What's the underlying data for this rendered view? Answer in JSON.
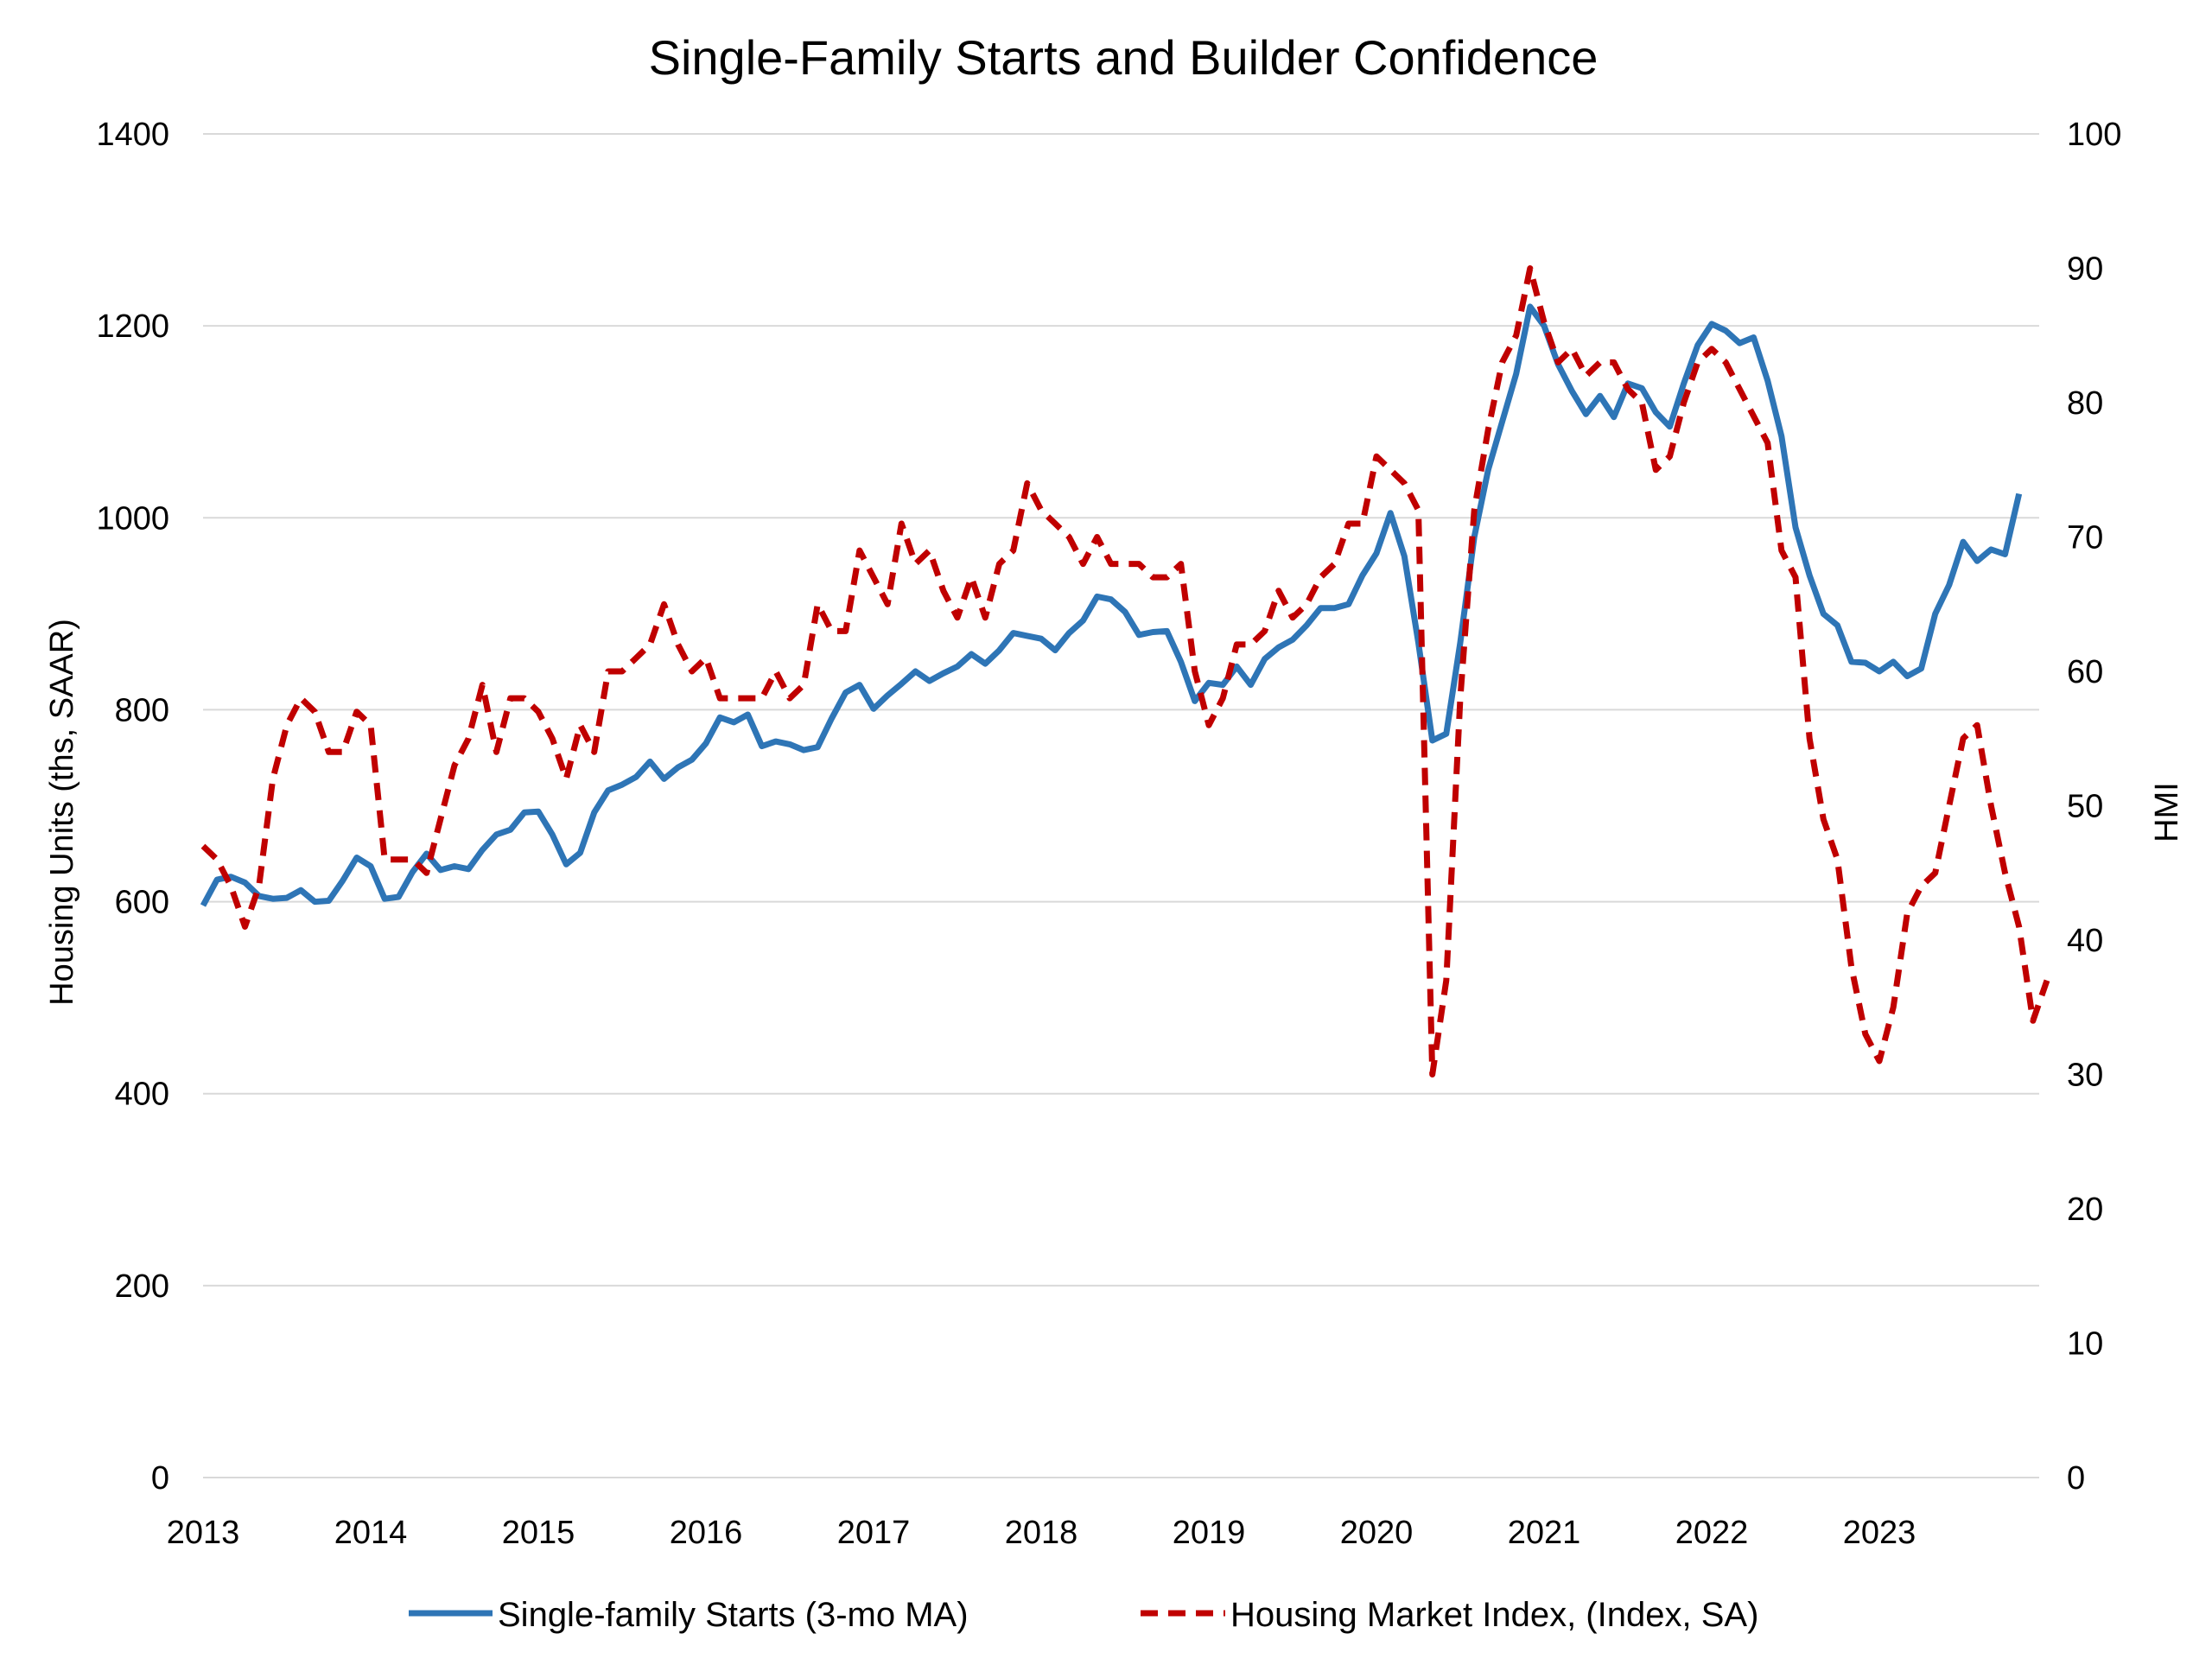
{
  "chart_data": {
    "type": "line",
    "title": "Single-Family Starts and Builder Confidence",
    "ylabel": "Housing Units (ths, SAAR)",
    "y2label": "HMI",
    "ylim": [
      0,
      1400
    ],
    "y2lim": [
      0,
      100
    ],
    "yticks": [
      "0",
      "200",
      "400",
      "600",
      "800",
      "1000",
      "1200",
      "1400"
    ],
    "y2ticks": [
      "0",
      "10",
      "20",
      "30",
      "40",
      "50",
      "60",
      "70",
      "80",
      "90",
      "100"
    ],
    "xticks": [
      "2013",
      "2014",
      "2015",
      "2016",
      "2017",
      "2018",
      "2019",
      "2020",
      "2021",
      "2022",
      "2023"
    ],
    "grid": true,
    "legend_position": "bottom",
    "x_start": "2013-01",
    "series": [
      {
        "name": "Single-family Starts (3-mo MA)",
        "axis": "left",
        "color": "#2e75b6",
        "style": "solid",
        "values": [
          596,
          623,
          626,
          620,
          606,
          603,
          604,
          612,
          600,
          601,
          622,
          646,
          637,
          603,
          605,
          631,
          650,
          633,
          637,
          634,
          654,
          670,
          675,
          693,
          694,
          670,
          639,
          651,
          693,
          716,
          722,
          730,
          746,
          728,
          740,
          748,
          765,
          792,
          787,
          795,
          762,
          767,
          764,
          758,
          761,
          791,
          818,
          826,
          801,
          815,
          827,
          840,
          830,
          838,
          845,
          858,
          848,
          862,
          880,
          877,
          874,
          862,
          880,
          893,
          918,
          915,
          902,
          878,
          881,
          882,
          850,
          809,
          828,
          826,
          845,
          826,
          853,
          865,
          873,
          888,
          906,
          906,
          910,
          940,
          963,
          1005,
          960,
          870,
          768,
          775,
          870,
          980,
          1050,
          1100,
          1150,
          1220,
          1200,
          1160,
          1132,
          1108,
          1127,
          1105,
          1140,
          1135,
          1110,
          1095,
          1140,
          1180,
          1202,
          1195,
          1182,
          1188,
          1143,
          1085,
          990,
          940,
          900,
          888,
          850,
          849,
          840,
          850,
          835,
          843,
          900,
          930,
          975,
          955,
          967,
          962,
          1025
        ]
      },
      {
        "name": "Housing Market Index, (Index, SA)",
        "axis": "right",
        "color": "#c00000",
        "style": "dashed",
        "values": [
          47,
          46,
          44,
          41,
          44,
          52,
          56,
          58,
          57,
          54,
          54,
          57,
          56,
          46,
          46,
          46,
          45,
          49,
          53,
          55,
          59,
          54,
          58,
          58,
          57,
          55,
          52,
          56,
          54,
          60,
          60,
          61,
          62,
          65,
          62,
          60,
          61,
          58,
          58,
          58,
          58,
          60,
          58,
          59,
          65,
          63,
          63,
          69,
          67,
          65,
          71,
          68,
          69,
          66,
          64,
          67,
          64,
          68,
          69,
          74,
          72,
          71,
          70,
          68,
          70,
          68,
          68,
          68,
          67,
          67,
          68,
          60,
          56,
          58,
          62,
          62,
          63,
          66,
          64,
          65,
          67,
          68,
          71,
          71,
          76,
          75,
          74,
          72,
          30,
          37,
          58,
          72,
          78,
          83,
          85,
          90,
          86,
          83,
          84,
          82,
          83,
          83,
          81,
          80,
          75,
          76,
          80,
          83,
          84,
          83,
          81,
          79,
          77,
          69,
          67,
          55,
          49,
          46,
          38,
          33,
          31,
          35,
          42,
          44,
          45,
          50,
          55,
          56,
          50,
          45,
          41,
          34,
          37
        ]
      }
    ]
  }
}
